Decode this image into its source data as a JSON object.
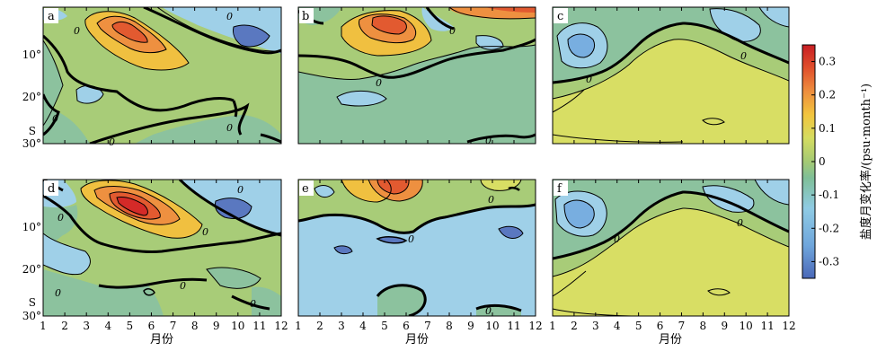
{
  "chart_data": {
    "type": "heatmap",
    "xlabel": "月份",
    "x_ticks": [
      "1",
      "2",
      "3",
      "4",
      "5",
      "6",
      "7",
      "8",
      "9",
      "10",
      "11",
      "12"
    ],
    "y_ticks": [
      "10°",
      "20°",
      "30°"
    ],
    "y_unit": "S",
    "panels": [
      "a",
      "b",
      "c",
      "d",
      "e",
      "f"
    ],
    "colorbar": {
      "label": "盐度月变化率/(psu·month⁻¹)",
      "range": [
        -0.35,
        0.35
      ],
      "ticks": [
        "0.3",
        "0.2",
        "0.1",
        "0",
        "-0.1",
        "-0.2",
        "-0.3"
      ],
      "colors": [
        "#5a78c0",
        "#78aee0",
        "#9fd0e8",
        "#8cc29e",
        "#a8cc78",
        "#d8de64",
        "#f0c040",
        "#ee9040",
        "#e25a30",
        "#d42a28"
      ]
    },
    "contour_label": "0",
    "grid": false
  }
}
